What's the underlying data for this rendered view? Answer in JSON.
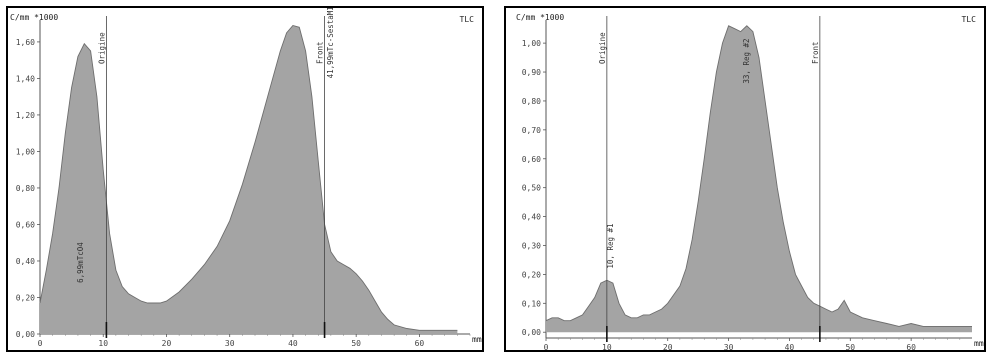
{
  "chart_data": [
    {
      "type": "area",
      "yunit_label": "C/mm *1000",
      "xunit_label": "mm",
      "corner_label": "TLC",
      "xlim": [
        0,
        68
      ],
      "ylim": [
        0,
        1.72
      ],
      "xticks": [
        0,
        10,
        20,
        30,
        40,
        50,
        60
      ],
      "yticks": [
        0.0,
        0.2,
        0.4,
        0.6,
        0.8,
        1.0,
        1.2,
        1.4,
        1.6
      ],
      "ytick_labels": [
        "0,00",
        "0,20",
        "0,40",
        "0,60",
        "0,80",
        "1,00",
        "1,20",
        "1,40",
        "1,60"
      ],
      "markers": [
        {
          "x": 10.5,
          "label": "Origine"
        },
        {
          "x": 45.0,
          "label": "Front"
        }
      ],
      "annotations": [
        {
          "x": 6.5,
          "y": 0.28,
          "text": "6,99mTcO4"
        },
        {
          "x": 46.0,
          "y": 1.4,
          "text": "41,99mTc-SestaMIBI"
        }
      ],
      "series": [
        {
          "x": [
            0,
            1,
            2,
            3,
            4,
            5,
            6,
            7,
            8,
            9,
            10,
            11,
            12,
            13,
            14,
            15,
            16,
            17,
            18,
            19,
            20,
            22,
            24,
            26,
            28,
            30,
            32,
            34,
            36,
            38,
            39,
            40,
            41,
            42,
            43,
            44,
            45,
            46,
            47,
            48,
            49,
            50,
            51,
            52,
            53,
            54,
            55,
            56,
            58,
            60,
            62,
            64,
            66
          ],
          "y": [
            0.17,
            0.35,
            0.55,
            0.8,
            1.1,
            1.35,
            1.52,
            1.59,
            1.55,
            1.3,
            0.9,
            0.55,
            0.35,
            0.26,
            0.22,
            0.2,
            0.18,
            0.17,
            0.17,
            0.17,
            0.18,
            0.23,
            0.3,
            0.38,
            0.48,
            0.62,
            0.82,
            1.05,
            1.3,
            1.55,
            1.65,
            1.69,
            1.68,
            1.55,
            1.3,
            0.95,
            0.6,
            0.45,
            0.4,
            0.38,
            0.36,
            0.33,
            0.29,
            0.24,
            0.18,
            0.12,
            0.08,
            0.05,
            0.03,
            0.02,
            0.02,
            0.02,
            0.02
          ]
        }
      ]
    },
    {
      "type": "area",
      "yunit_label": "C/mm *1000",
      "xunit_label": "mm",
      "corner_label": "TLC",
      "xlim": [
        0,
        70
      ],
      "ylim": [
        -0.02,
        1.08
      ],
      "xticks": [
        0,
        10,
        20,
        30,
        40,
        50,
        60
      ],
      "yticks": [
        0.0,
        0.1,
        0.2,
        0.3,
        0.4,
        0.5,
        0.6,
        0.7,
        0.8,
        0.9,
        1.0
      ],
      "ytick_labels": [
        "0,00",
        "0,10",
        "0,20",
        "0,30",
        "0,40",
        "0,50",
        "0,60",
        "0,70",
        "0,80",
        "0,90",
        "1,00"
      ],
      "markers": [
        {
          "x": 10.0,
          "label": "Origine"
        },
        {
          "x": 45.0,
          "label": "Front"
        }
      ],
      "annotations": [
        {
          "x": 10.7,
          "y": 0.22,
          "text": "10, Reg #1"
        },
        {
          "x": 33.0,
          "y": 0.86,
          "text": "33, Reg #2"
        }
      ],
      "series": [
        {
          "x": [
            0,
            1,
            2,
            3,
            4,
            5,
            6,
            7,
            8,
            9,
            10,
            11,
            12,
            13,
            14,
            15,
            16,
            17,
            18,
            19,
            20,
            21,
            22,
            23,
            24,
            25,
            26,
            27,
            28,
            29,
            30,
            31,
            32,
            33,
            34,
            35,
            36,
            37,
            38,
            39,
            40,
            41,
            42,
            43,
            44,
            45,
            46,
            47,
            48,
            49,
            50,
            52,
            54,
            56,
            58,
            60,
            62,
            64,
            66,
            68,
            70
          ],
          "y": [
            0.04,
            0.05,
            0.05,
            0.04,
            0.04,
            0.05,
            0.06,
            0.09,
            0.12,
            0.17,
            0.18,
            0.17,
            0.1,
            0.06,
            0.05,
            0.05,
            0.06,
            0.06,
            0.07,
            0.08,
            0.1,
            0.13,
            0.16,
            0.22,
            0.32,
            0.45,
            0.6,
            0.76,
            0.9,
            1.0,
            1.06,
            1.05,
            1.04,
            1.06,
            1.04,
            0.95,
            0.8,
            0.65,
            0.5,
            0.38,
            0.28,
            0.2,
            0.16,
            0.12,
            0.1,
            0.09,
            0.08,
            0.07,
            0.08,
            0.11,
            0.07,
            0.05,
            0.04,
            0.03,
            0.02,
            0.03,
            0.02,
            0.02,
            0.02,
            0.02,
            0.02
          ]
        }
      ]
    }
  ]
}
